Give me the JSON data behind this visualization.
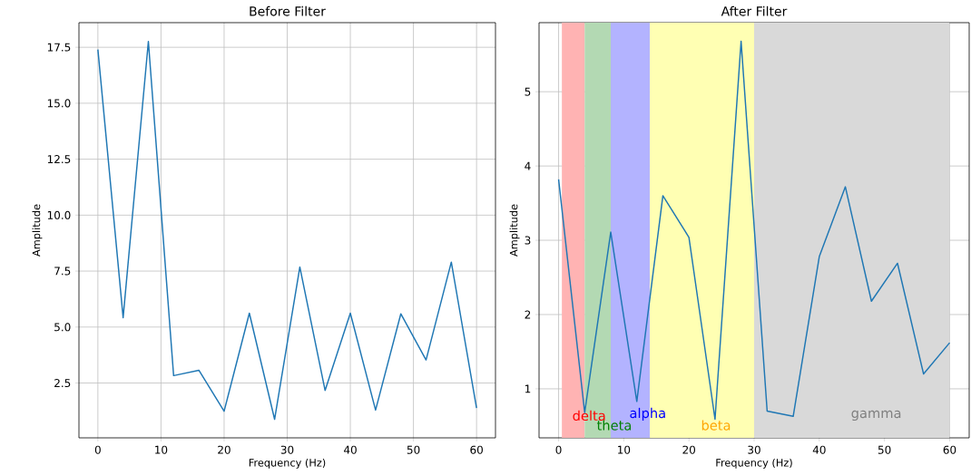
{
  "chart_data": [
    {
      "type": "line",
      "title": "Before Filter",
      "xlabel": "Frequency (Hz)",
      "ylabel": "Amplitude",
      "x": [
        0,
        4,
        8,
        12,
        16,
        20,
        24,
        28,
        32,
        36,
        40,
        44,
        48,
        52,
        56,
        60
      ],
      "series": [
        {
          "color": "#1f77b4",
          "values": [
            17.4,
            5.42,
            17.76,
            2.83,
            3.07,
            1.24,
            5.62,
            0.88,
            7.68,
            2.17,
            5.62,
            1.29,
            5.59,
            3.53,
            7.9,
            1.38
          ]
        }
      ],
      "xlim": [
        -3,
        63
      ],
      "ylim": [
        0.05,
        18.6
      ],
      "xticks": [
        0,
        10,
        20,
        30,
        40,
        50,
        60
      ],
      "yticks": [
        2.5,
        {
          "value": 5,
          "label": "5.0"
        },
        7.5,
        {
          "value": 10,
          "label": "10.0"
        },
        12.5,
        {
          "value": 15,
          "label": "15.0"
        },
        17.5
      ],
      "grid": true
    },
    {
      "type": "line",
      "title": "After Filter",
      "xlabel": "Frequency (Hz)",
      "ylabel": "Amplitude",
      "x": [
        0,
        4,
        8,
        12,
        16,
        20,
        24,
        28,
        32,
        36,
        40,
        44,
        48,
        52,
        56,
        60
      ],
      "series": [
        {
          "color": "#1f77b4",
          "values": [
            3.82,
            0.68,
            3.11,
            0.83,
            3.6,
            3.04,
            0.59,
            5.68,
            0.7,
            0.63,
            2.78,
            3.72,
            2.18,
            2.69,
            1.2,
            1.62
          ]
        }
      ],
      "xlim": [
        -3,
        63
      ],
      "ylim": [
        0.34,
        5.93
      ],
      "xticks": [
        0,
        10,
        20,
        30,
        40,
        50,
        60
      ],
      "yticks": [
        1,
        2,
        3,
        4,
        5
      ],
      "bands": [
        {
          "axis": "x",
          "from": 0.5,
          "to": 4,
          "label": "delta",
          "color": "#ffb3b3"
        },
        {
          "axis": "x",
          "from": 4,
          "to": 8,
          "label": "theta",
          "color": "#b3d9b3"
        },
        {
          "axis": "x",
          "from": 8,
          "to": 14,
          "label": "alpha",
          "color": "#b3b3ff"
        },
        {
          "axis": "x",
          "from": 14,
          "to": 30,
          "label": "beta",
          "color": "#ffffb3"
        },
        {
          "axis": "x",
          "from": 30,
          "to": 60,
          "label": "gamma",
          "color": "#d9d9d9"
        }
      ],
      "grid": true
    }
  ]
}
